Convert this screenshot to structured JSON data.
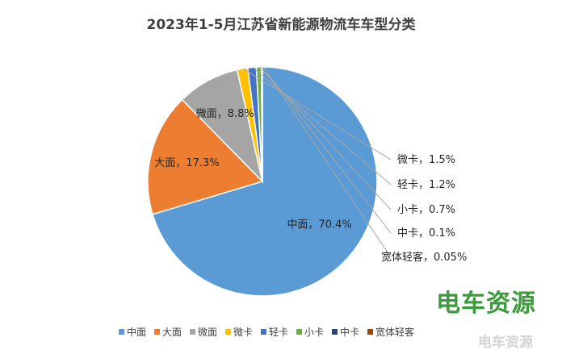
{
  "chart_data": {
    "type": "pie",
    "title": "2023年1-5月江苏省新能源物流车车型分类",
    "categories": [
      "中面",
      "大面",
      "微面",
      "微卡",
      "轻卡",
      "小卡",
      "中卡",
      "宽体轻客"
    ],
    "values": [
      70.4,
      17.3,
      8.8,
      1.5,
      1.2,
      0.7,
      0.1,
      0.05
    ],
    "data_labels": [
      "中面，70.4%",
      "大面，17.3%",
      "微面，8.8%",
      "微卡，1.5%",
      "轻卡，1.2%",
      "小卡，0.7%",
      "中卡，0.1%",
      "宽体轻客，0.05%"
    ],
    "colors": [
      "#5B9BD5",
      "#ED7D31",
      "#A5A5A5",
      "#FFC000",
      "#4472C4",
      "#70AD47",
      "#264478",
      "#9E480E"
    ],
    "legend": [
      "中面",
      "大面",
      "微面",
      "微卡",
      "轻卡",
      "小卡",
      "中卡",
      "宽体轻客"
    ],
    "legend_position": "bottom",
    "unit": "%"
  },
  "watermark": {
    "logo_text": "电车资源",
    "corner_text": "电车资源"
  }
}
